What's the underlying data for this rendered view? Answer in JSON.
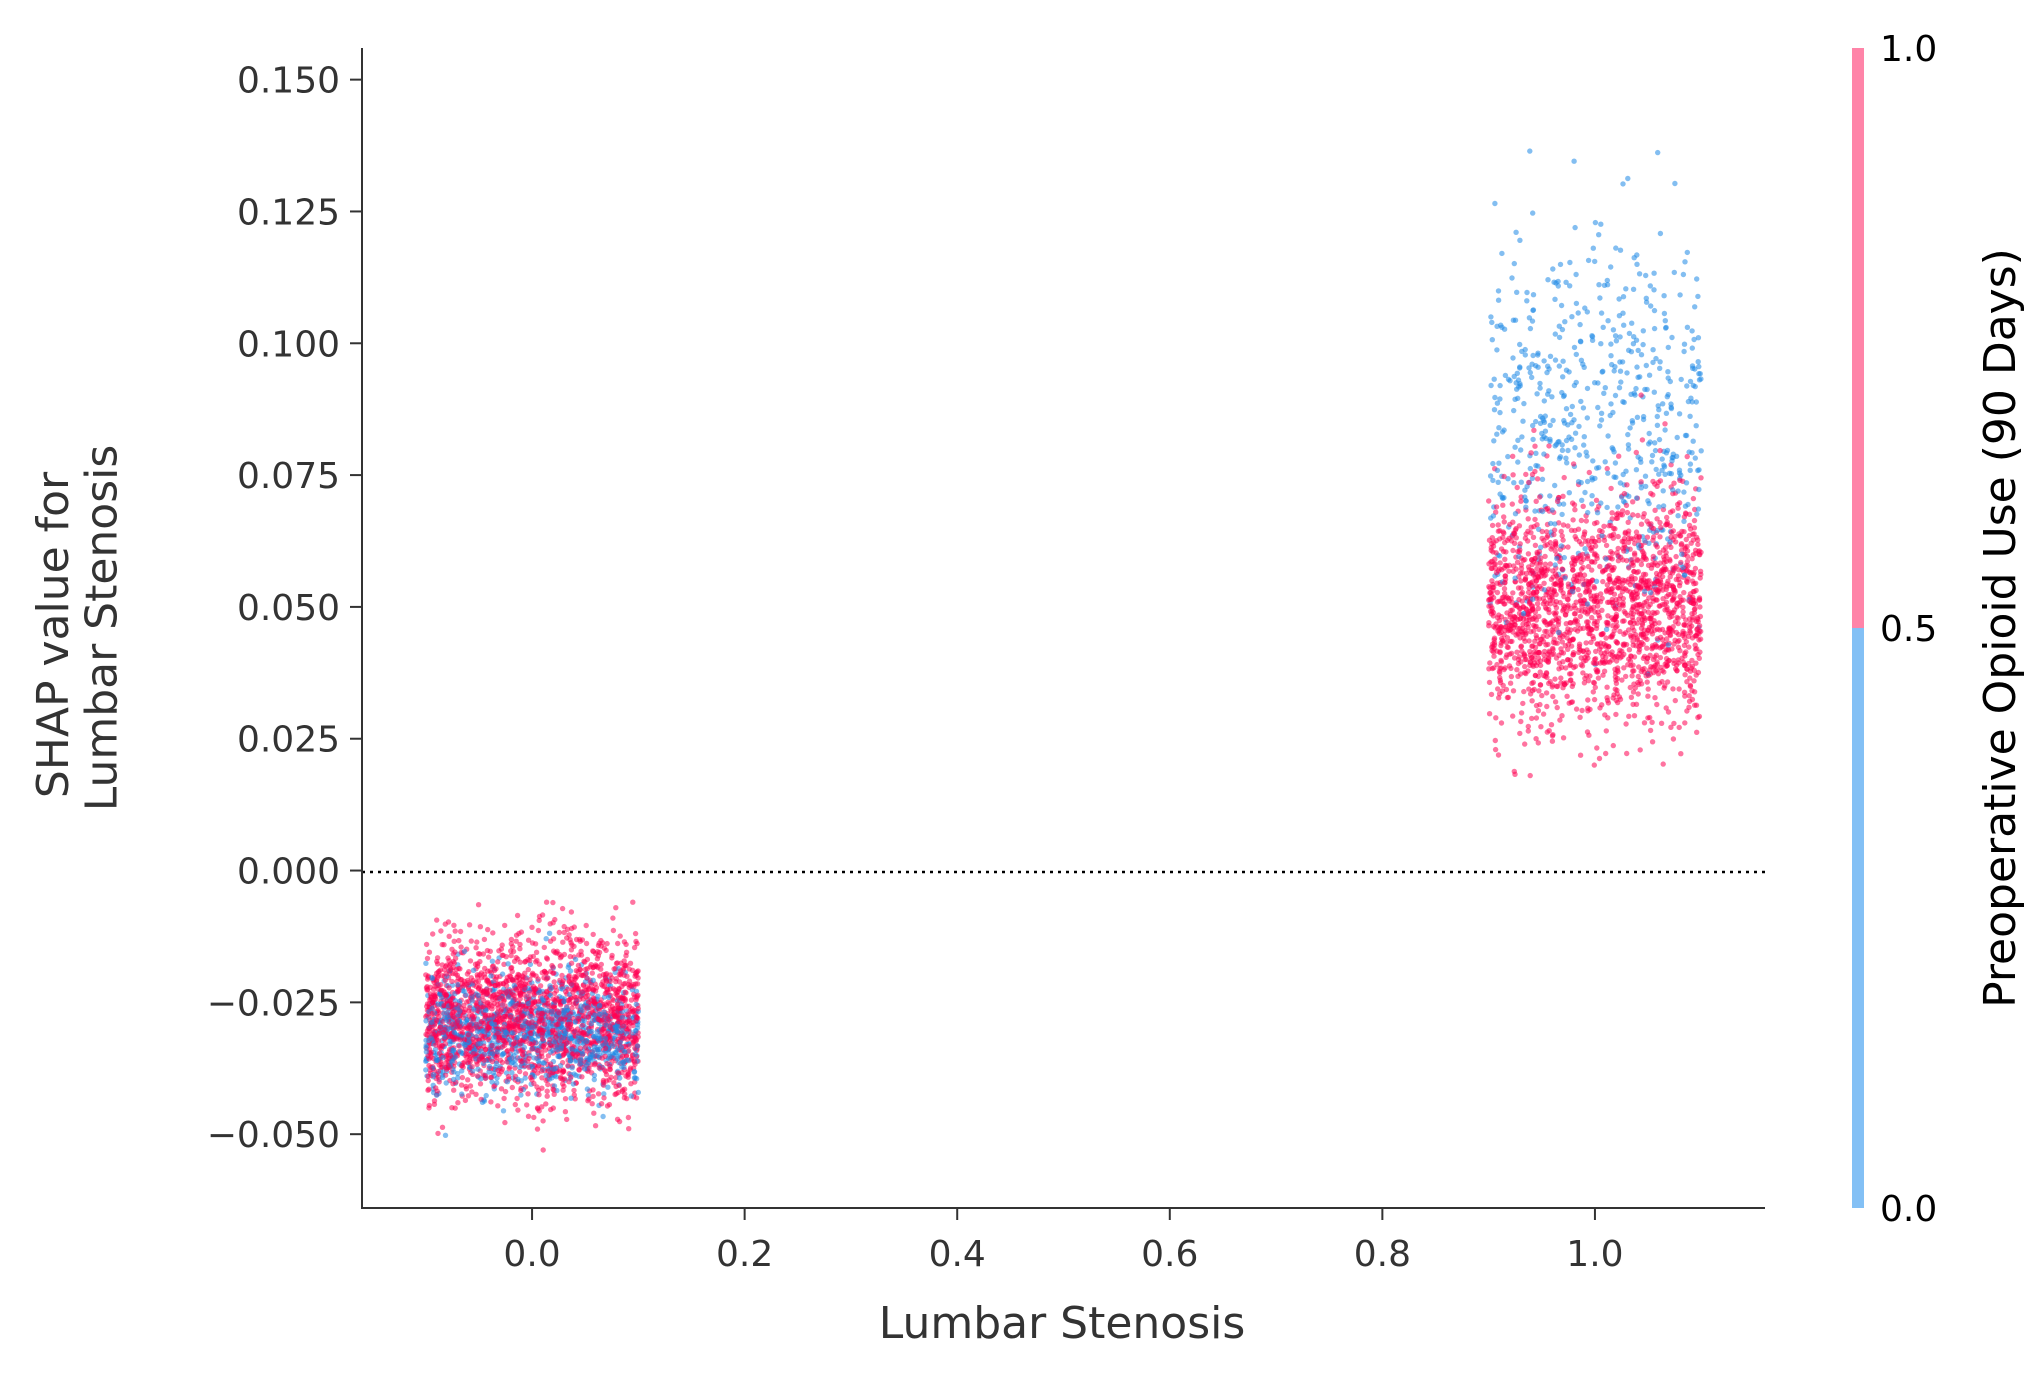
{
  "chart_data": {
    "type": "scatter",
    "title": "",
    "xlabel": "Lumbar Stenosis",
    "ylabel_lines": [
      "SHAP value for",
      "Lumbar Stenosis"
    ],
    "xlim": [
      -0.16,
      1.16
    ],
    "ylim": [
      -0.064,
      0.156
    ],
    "x_ticks": [
      0.0,
      0.2,
      0.4,
      0.6,
      0.8,
      1.0
    ],
    "x_tick_labels": [
      "0.0",
      "0.2",
      "0.4",
      "0.6",
      "0.8",
      "1.0"
    ],
    "y_ticks": [
      0.15,
      0.125,
      0.1,
      0.075,
      0.05,
      0.025,
      0.0,
      -0.025,
      -0.05
    ],
    "y_tick_labels": [
      "0.150",
      "0.125",
      "0.100",
      "0.075",
      "0.050",
      "0.025",
      "0.000",
      "−0.025",
      "−0.050"
    ],
    "zero_reference_line": {
      "y": 0.0,
      "style": "dotted"
    },
    "grid": false,
    "colorbar": {
      "label": "Preoperative Opioid Use (90 Days)",
      "range": [
        0.0,
        1.0
      ],
      "tick_labels": [
        "0.0",
        "0.5",
        "1.0"
      ],
      "low_color": "#83c0f5",
      "high_color": "#ff84a8",
      "point_low_color": "#1e88e5",
      "point_high_color": "#ff0052"
    },
    "groups": [
      {
        "x": 0.0,
        "jitter": 0.1,
        "y_min": -0.053,
        "y_max": -0.006,
        "opioid_0": {
          "count": 1000,
          "mean": -0.031,
          "sd": 0.0055
        },
        "opioid_1": {
          "count": 2000,
          "mean": -0.028,
          "sd": 0.0075
        }
      },
      {
        "x": 1.0,
        "jitter": 0.1,
        "y_min": 0.018,
        "y_max": 0.146,
        "opioid_0": {
          "count": 600,
          "mean": 0.085,
          "sd": 0.018
        },
        "opioid_1": {
          "count": 1900,
          "mean": 0.05,
          "sd": 0.0105
        }
      }
    ]
  }
}
